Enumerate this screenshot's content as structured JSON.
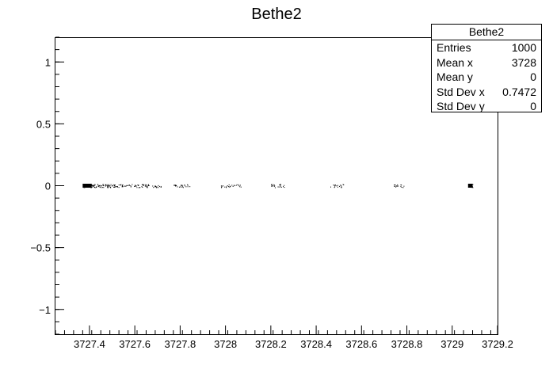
{
  "chart_data": {
    "type": "scatter",
    "title": "Bethe2",
    "xlabel": "",
    "ylabel": "",
    "xlim": [
      3727.25,
      3729.2
    ],
    "ylim": [
      -1.2,
      1.2
    ],
    "x_ticks": [
      {
        "value": 3727.4,
        "label": "3727.4"
      },
      {
        "value": 3727.6,
        "label": "3727.6"
      },
      {
        "value": 3727.8,
        "label": "3727.8"
      },
      {
        "value": 3728.0,
        "label": "3728"
      },
      {
        "value": 3728.2,
        "label": "3728.2"
      },
      {
        "value": 3728.4,
        "label": "3728.4"
      },
      {
        "value": 3728.6,
        "label": "3728.6"
      },
      {
        "value": 3728.8,
        "label": "3728.8"
      },
      {
        "value": 3729.0,
        "label": "3729"
      },
      {
        "value": 3729.2,
        "label": "3729.2"
      }
    ],
    "y_ticks": [
      {
        "value": 1,
        "label": "1"
      },
      {
        "value": 0.5,
        "label": "0.5"
      },
      {
        "value": 0,
        "label": "0"
      },
      {
        "value": -0.5,
        "label": "−0.5"
      },
      {
        "value": -1,
        "label": "−1"
      }
    ],
    "grid": false,
    "legend": "none",
    "colors": {
      "marker": "#000000",
      "frame": "#000000",
      "background": "#ffffff"
    },
    "clusters": [
      {
        "x_start": 3727.37,
        "x_end": 3727.41,
        "y": 0,
        "weight": 0.95
      },
      {
        "x_start": 3727.41,
        "x_end": 3727.56,
        "y": 0,
        "weight": 0.6
      },
      {
        "x_start": 3727.56,
        "x_end": 3727.72,
        "y": 0,
        "weight": 0.35
      },
      {
        "x_start": 3727.77,
        "x_end": 3727.85,
        "y": 0,
        "weight": 0.3
      },
      {
        "x_start": 3727.98,
        "x_end": 3728.07,
        "y": 0,
        "weight": 0.25
      },
      {
        "x_start": 3728.2,
        "x_end": 3728.26,
        "y": 0,
        "weight": 0.3
      },
      {
        "x_start": 3728.46,
        "x_end": 3728.52,
        "y": 0,
        "weight": 0.25
      },
      {
        "x_start": 3728.74,
        "x_end": 3728.79,
        "y": 0,
        "weight": 0.25
      },
      {
        "x_start": 3729.07,
        "x_end": 3729.09,
        "y": 0,
        "weight": 0.95
      }
    ],
    "stats": {
      "title": "Bethe2",
      "rows": [
        {
          "label": "Entries",
          "value": "1000"
        },
        {
          "label": "Mean x",
          "value": "3728"
        },
        {
          "label": "Mean y",
          "value": "0"
        },
        {
          "label": "Std Dev x",
          "value": "0.7472"
        },
        {
          "label": "Std Dev y",
          "value": "0"
        }
      ]
    }
  }
}
